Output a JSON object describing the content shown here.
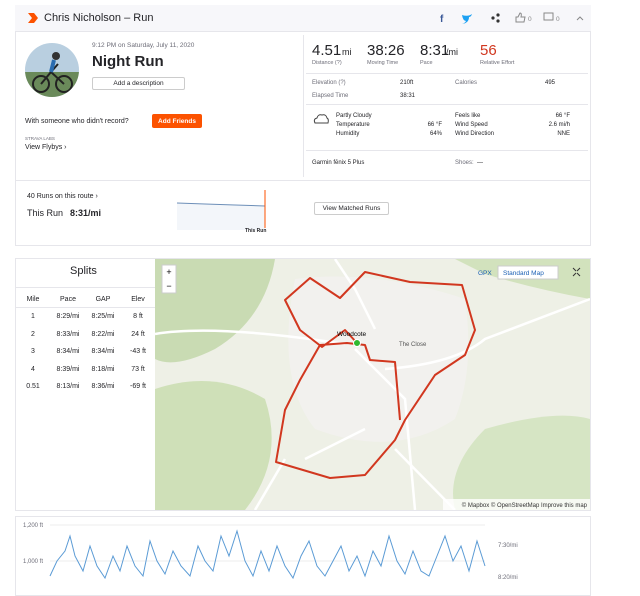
{
  "header": {
    "title": "Chris Nicholson – Run",
    "kudos": "0",
    "comments": "0"
  },
  "activity": {
    "datetime": "9:12 PM on Saturday, July 11, 2020",
    "name": "Night Run",
    "add_description": "Add a description",
    "with_someone": "With someone who didn't record?",
    "add_friends": "Add Friends",
    "labs": "STRAVA LABS",
    "flybys": "View Flybys ›"
  },
  "stats": [
    {
      "value": "4.51",
      "unit": "mi",
      "label": "Distance (?)"
    },
    {
      "value": "38:26",
      "unit": "",
      "label": "Moving Time"
    },
    {
      "value": "8:31",
      "unit": "/mi",
      "label": "Pace"
    },
    {
      "value": "56",
      "unit": "",
      "label": "Relative Effort"
    }
  ],
  "details": [
    {
      "label": "Elevation (?)",
      "value": "210ft"
    },
    {
      "label": "Calories",
      "value": "495"
    },
    {
      "label": "Elapsed Time",
      "value": "38:31"
    }
  ],
  "weather": {
    "condition": "Partly Cloudy",
    "left": [
      {
        "label": "Temperature",
        "value": "66 °F"
      },
      {
        "label": "Humidity",
        "value": "64%"
      }
    ],
    "right": [
      {
        "label": "Feels like",
        "value": "66 °F"
      },
      {
        "label": "Wind Speed",
        "value": "2.6 mi/h"
      },
      {
        "label": "Wind Direction",
        "value": "NNE"
      }
    ]
  },
  "device": "Garmin fēnix 5 Plus",
  "shoes": {
    "label": "Shoes:",
    "value": "—"
  },
  "route": {
    "runs": "40 Runs on this route ›",
    "this_run_label": "This Run",
    "this_run_pace": "8:31/mi",
    "marker": "This Run",
    "button": "View Matched Runs"
  },
  "splits": {
    "title": "Splits",
    "columns": [
      "Mile",
      "Pace",
      "GAP",
      "Elev"
    ],
    "rows": [
      [
        "1",
        "8:29/mi",
        "8:25/mi",
        "8 ft"
      ],
      [
        "2",
        "8:33/mi",
        "8:22/mi",
        "24 ft"
      ],
      [
        "3",
        "8:34/mi",
        "8:34/mi",
        "-43 ft"
      ],
      [
        "4",
        "8:39/mi",
        "8:18/mi",
        "73 ft"
      ],
      [
        "0.51",
        "8:13/mi",
        "8:36/mi",
        "-69 ft"
      ]
    ]
  },
  "map": {
    "zoom_in": "+",
    "zoom_out": "−",
    "gpx": "GPX",
    "style": "Standard Map",
    "places": [
      "Woodcote",
      "The Close"
    ],
    "attribution": "© Mapbox © OpenStreetMap Improve this map"
  },
  "chart": {
    "left_labels": [
      "1,200 ft",
      "1,000 ft"
    ],
    "right_labels": [
      "7:30/mi",
      "8:20/mi"
    ]
  }
}
